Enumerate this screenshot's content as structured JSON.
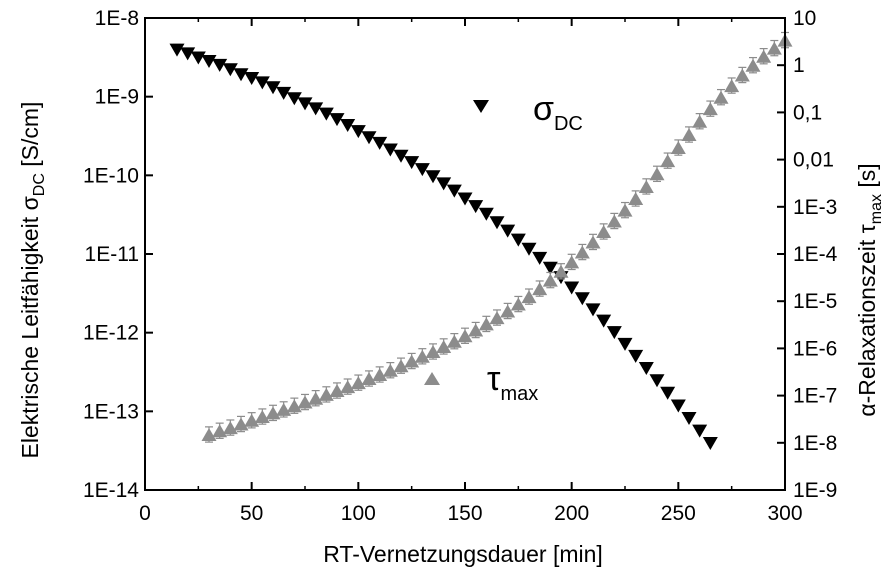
{
  "chart_data": {
    "type": "scatter",
    "xlabel": "RT-Vernetzungsdauer [min]",
    "x_range": [
      0,
      300
    ],
    "x_ticks": [
      "0",
      "50",
      "100",
      "150",
      "200",
      "250",
      "300"
    ],
    "y_left": {
      "label_main": "Elektrische Leitfähigkeit σ",
      "label_sub": "DC",
      "label_unit": " [S/cm]",
      "scale": "log",
      "range": [
        1e-14,
        1e-08
      ],
      "ticks": [
        "1E-14",
        "1E-13",
        "1E-12",
        "1E-11",
        "1E-10",
        "1E-9",
        "1E-8"
      ]
    },
    "y_right": {
      "label_main": "α-Relaxationszeit τ",
      "label_sub": "max",
      "label_unit": " [s]",
      "scale": "log",
      "range": [
        1e-09,
        10
      ],
      "ticks": [
        "1E-9",
        "1E-8",
        "1E-7",
        "1E-6",
        "1E-5",
        "1E-4",
        "1E-3",
        "0,01",
        "0,1",
        "1",
        "10"
      ]
    },
    "grid": false,
    "series": [
      {
        "name_symbol": "σ",
        "name_sub": "DC",
        "axis": "left",
        "marker": "triangle-down",
        "color": "#000000",
        "x": [
          15,
          20,
          25,
          30,
          35,
          40,
          45,
          50,
          55,
          60,
          65,
          70,
          75,
          80,
          85,
          90,
          95,
          100,
          105,
          110,
          115,
          120,
          125,
          130,
          135,
          140,
          145,
          150,
          155,
          160,
          165,
          170,
          175,
          180,
          185,
          190,
          195,
          200,
          205,
          210,
          215,
          220,
          225,
          230,
          235,
          240,
          245,
          250,
          255,
          260,
          265
        ],
        "y": [
          3.9e-09,
          3.5e-09,
          3.1e-09,
          2.8e-09,
          2.5e-09,
          2.2e-09,
          1.9e-09,
          1.7e-09,
          1.5e-09,
          1.3e-09,
          1.1e-09,
          9.4e-10,
          8.1e-10,
          7e-10,
          6e-10,
          5.1e-10,
          4.3e-10,
          3.6e-10,
          3e-10,
          2.55e-10,
          2.1e-10,
          1.75e-10,
          1.45e-10,
          1.18e-10,
          9.6e-11,
          7.8e-11,
          6.3e-11,
          5e-11,
          4e-11,
          3.2e-11,
          2.5e-11,
          1.95e-11,
          1.5e-11,
          1.15e-11,
          8.8e-12,
          6.6e-12,
          5e-12,
          3.7e-12,
          2.7e-12,
          1.95e-12,
          1.4e-12,
          1e-12,
          7.1e-13,
          5e-13,
          3.5e-13,
          2.45e-13,
          1.7e-13,
          1.17e-13,
          8.1e-14,
          5.6e-14,
          3.9e-14
        ],
        "err_up_factor": 1.18
      },
      {
        "name_symbol": "τ",
        "name_sub": "max",
        "axis": "right",
        "marker": "triangle-up",
        "color": "#8c8c8c",
        "x": [
          30,
          35,
          40,
          45,
          50,
          55,
          60,
          65,
          70,
          75,
          80,
          85,
          90,
          95,
          100,
          105,
          110,
          115,
          120,
          125,
          130,
          135,
          140,
          145,
          150,
          155,
          160,
          165,
          170,
          175,
          180,
          185,
          190,
          195,
          200,
          205,
          210,
          215,
          220,
          225,
          230,
          235,
          240,
          245,
          250,
          255,
          260,
          265,
          270,
          275,
          280,
          285,
          290,
          295,
          300
        ],
        "y": [
          1.5e-08,
          1.8e-08,
          2.1e-08,
          2.5e-08,
          3e-08,
          3.6e-08,
          4.3e-08,
          5.1e-08,
          6.1e-08,
          7.3e-08,
          8.8e-08,
          1.06e-07,
          1.28e-07,
          1.55e-07,
          1.88e-07,
          2.3e-07,
          2.8e-07,
          3.45e-07,
          4.3e-07,
          5.4e-07,
          6.8e-07,
          8.6e-07,
          1.1e-06,
          1.42e-06,
          1.85e-06,
          2.45e-06,
          3.3e-06,
          4.5e-06,
          6.2e-06,
          8.7e-06,
          1.25e-05,
          1.85e-05,
          2.8e-05,
          4.3e-05,
          6.8e-05,
          0.00011,
          0.00018,
          0.0003,
          0.0005,
          0.00085,
          0.0015,
          0.0027,
          0.005,
          0.0095,
          0.018,
          0.034,
          0.065,
          0.12,
          0.21,
          0.37,
          0.62,
          1.0,
          1.55,
          2.3,
          3.4
        ],
        "err_factor": 1.45
      }
    ],
    "legend": {
      "placement": "inside plot, labels next to series",
      "entries": [
        {
          "symbol": "σ",
          "sub": "DC",
          "marker": "triangle-down",
          "color": "#000000"
        },
        {
          "symbol": "τ",
          "sub": "max",
          "marker": "triangle-up",
          "color": "#8c8c8c"
        }
      ]
    }
  }
}
